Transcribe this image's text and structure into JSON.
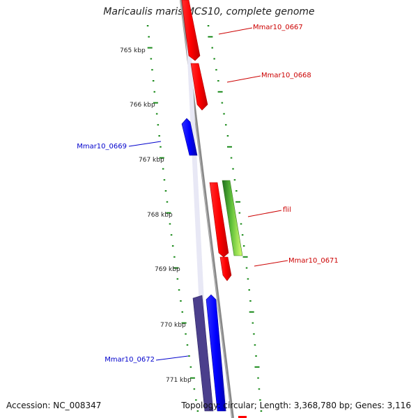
{
  "title": "Maricaulis maris MCS10, complete genome",
  "footer": {
    "accession": "Accession: NC_008347",
    "summary": "Topology: circular; Length: 3,368,780 bp; Genes: 3,116"
  },
  "colors": {
    "forward": "#ff0000",
    "reverse": "#0000ff",
    "reverse_dark": "#4b3f8c",
    "flil_a": "#2e8b2e",
    "flil_b": "#ccff66",
    "ticks": "#1a8a1a",
    "backbone": "#888888"
  },
  "axis": {
    "ticks": [
      {
        "label": "765 kbp"
      },
      {
        "label": "766 kbp"
      },
      {
        "label": "767 kbp"
      },
      {
        "label": "768 kbp"
      },
      {
        "label": "769 kbp"
      },
      {
        "label": "770 kbp"
      },
      {
        "label": "771 kbp"
      }
    ]
  },
  "genes": [
    {
      "label": "Mmar10_0667",
      "strand": "forward"
    },
    {
      "label": "Mmar10_0668",
      "strand": "forward"
    },
    {
      "label": "Mmar10_0669",
      "strand": "reverse"
    },
    {
      "label": "flil",
      "strand": "forward"
    },
    {
      "label": "Mmar10_0671",
      "strand": "forward"
    },
    {
      "label": "Mmar10_0672",
      "strand": "reverse"
    }
  ]
}
